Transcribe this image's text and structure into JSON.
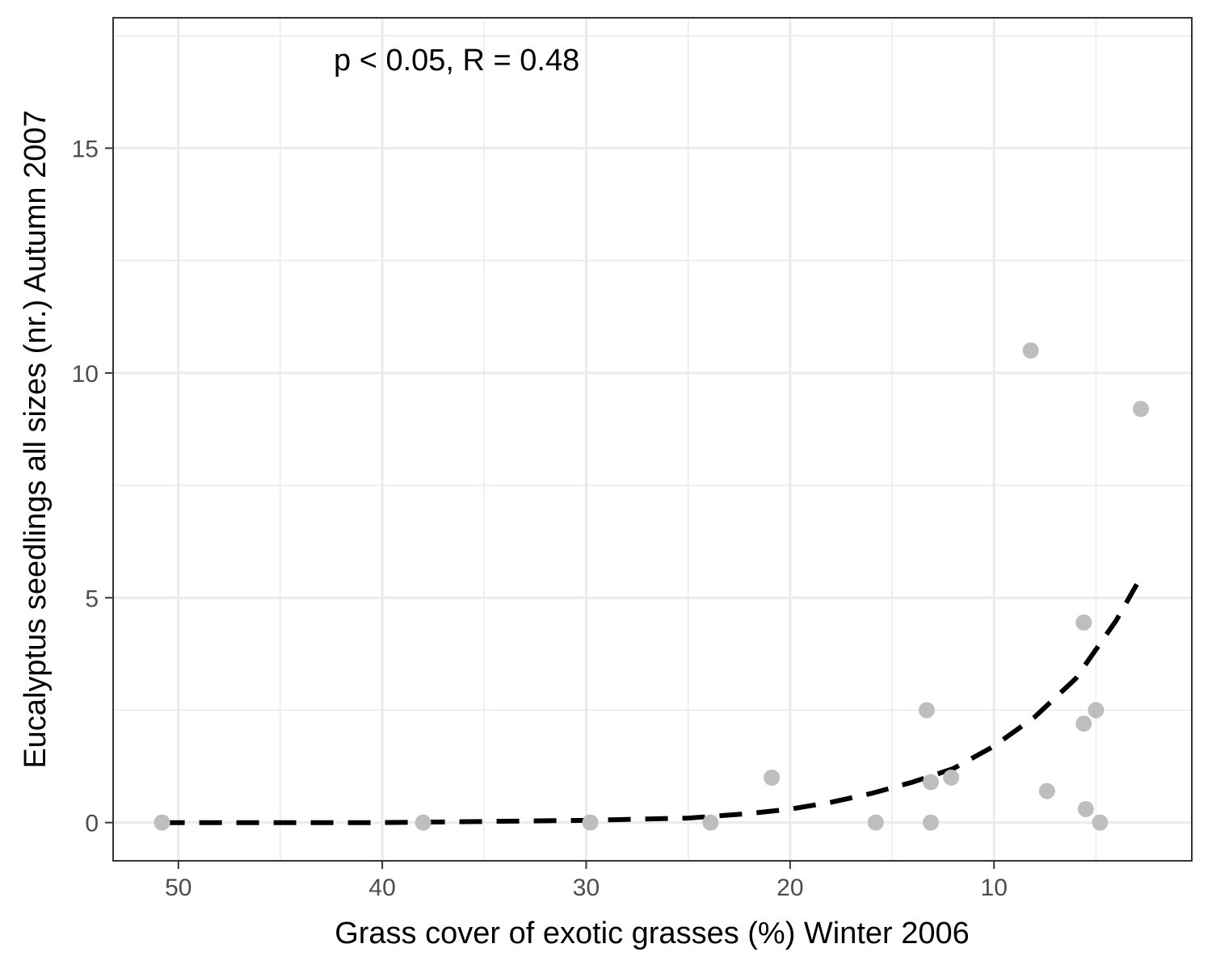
{
  "chart_data": {
    "type": "scatter",
    "title": "",
    "xlabel": "Grass cover of exotic grasses (%) Winter 2006",
    "ylabel": "Eucalyptus seedlings all sizes (nr.) Autumn 2007",
    "annotation": "p < 0.05, R = 0.48",
    "x_reversed": true,
    "xlim": [
      53.2,
      0.3
    ],
    "ylim": [
      -0.85,
      17.9
    ],
    "xticks": [
      50,
      40,
      30,
      20,
      10
    ],
    "xtick_labels": [
      "50",
      "40",
      "30",
      "20",
      "10"
    ],
    "x_minor_gridlines": [
      45,
      35,
      25,
      15,
      5
    ],
    "yticks": [
      0,
      5,
      10,
      15
    ],
    "ytick_labels": [
      "0",
      "5",
      "10",
      "15"
    ],
    "y_minor_gridlines": [
      2.5,
      7.5,
      12.5,
      17.5
    ],
    "grid": true,
    "point_color": "#bebebe",
    "line_color": "#000000",
    "series": [
      {
        "type": "scatter",
        "points": [
          {
            "x": 50.8,
            "y": 0
          },
          {
            "x": 38,
            "y": 0
          },
          {
            "x": 29.8,
            "y": 0
          },
          {
            "x": 23.9,
            "y": 0
          },
          {
            "x": 20.9,
            "y": 1.0
          },
          {
            "x": 15.8,
            "y": 0
          },
          {
            "x": 13.3,
            "y": 2.5
          },
          {
            "x": 13.1,
            "y": 0.9
          },
          {
            "x": 13.1,
            "y": 0
          },
          {
            "x": 12.1,
            "y": 1.0
          },
          {
            "x": 8.2,
            "y": 10.5
          },
          {
            "x": 7.4,
            "y": 0.7
          },
          {
            "x": 5.6,
            "y": 4.45
          },
          {
            "x": 5.6,
            "y": 2.2
          },
          {
            "x": 5.5,
            "y": 0.3
          },
          {
            "x": 5.0,
            "y": 2.5
          },
          {
            "x": 4.8,
            "y": 0
          },
          {
            "x": 2.8,
            "y": 9.2
          }
        ]
      },
      {
        "type": "line",
        "style": "dashed",
        "fit": "exponential",
        "points": [
          {
            "x": 50.8,
            "y": 0
          },
          {
            "x": 40,
            "y": 0
          },
          {
            "x": 30,
            "y": 0.05
          },
          {
            "x": 25,
            "y": 0.1
          },
          {
            "x": 22,
            "y": 0.2
          },
          {
            "x": 20,
            "y": 0.3
          },
          {
            "x": 18,
            "y": 0.45
          },
          {
            "x": 16,
            "y": 0.65
          },
          {
            "x": 14,
            "y": 0.9
          },
          {
            "x": 12,
            "y": 1.2
          },
          {
            "x": 10,
            "y": 1.7
          },
          {
            "x": 8,
            "y": 2.35
          },
          {
            "x": 6,
            "y": 3.2
          },
          {
            "x": 4,
            "y": 4.5
          },
          {
            "x": 3.0,
            "y": 5.3
          }
        ]
      }
    ]
  }
}
